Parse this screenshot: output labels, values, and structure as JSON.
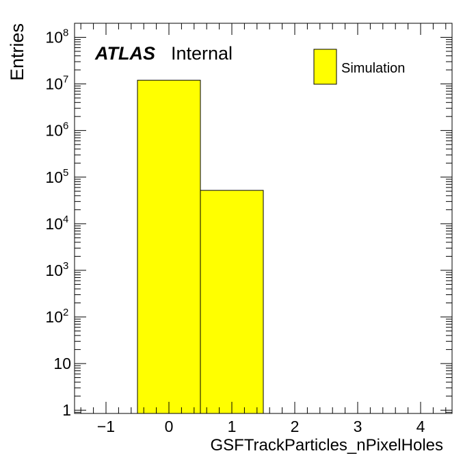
{
  "chart_data": {
    "type": "bar",
    "style": "histogram",
    "xlabel": "GSFTrackParticles_nPixelHoles",
    "ylabel": "Entries",
    "xlim": [
      -1.5,
      4.5
    ],
    "ylim": [
      0.85,
      200000000
    ],
    "y_scale": "log",
    "x_ticks": [
      {
        "value": -1,
        "label": "−1"
      },
      {
        "value": 0,
        "label": "0"
      },
      {
        "value": 1,
        "label": "1"
      },
      {
        "value": 2,
        "label": "2"
      },
      {
        "value": 3,
        "label": "3"
      },
      {
        "value": 4,
        "label": "4"
      }
    ],
    "y_ticks": [
      {
        "value": 1,
        "base": "1",
        "exp": ""
      },
      {
        "value": 10,
        "base": "10",
        "exp": ""
      },
      {
        "value": 100,
        "base": "10",
        "exp": "2"
      },
      {
        "value": 1000,
        "base": "10",
        "exp": "3"
      },
      {
        "value": 10000,
        "base": "10",
        "exp": "4"
      },
      {
        "value": 100000,
        "base": "10",
        "exp": "5"
      },
      {
        "value": 1000000,
        "base": "10",
        "exp": "6"
      },
      {
        "value": 10000000,
        "base": "10",
        "exp": "7"
      },
      {
        "value": 100000000,
        "base": "10",
        "exp": "8"
      }
    ],
    "bins": [
      {
        "low": -0.5,
        "high": 0.5,
        "value": 12000000
      },
      {
        "low": 0.5,
        "high": 1.5,
        "value": 52000
      }
    ],
    "series": [
      {
        "name": "Simulation",
        "color": "#ffff00"
      }
    ],
    "legend_position": "top-right",
    "grid": false,
    "annotation": {
      "experiment": "ATLAS",
      "status": "Internal"
    }
  },
  "colors": {
    "fill": "#ffff00",
    "line": "#000000"
  }
}
